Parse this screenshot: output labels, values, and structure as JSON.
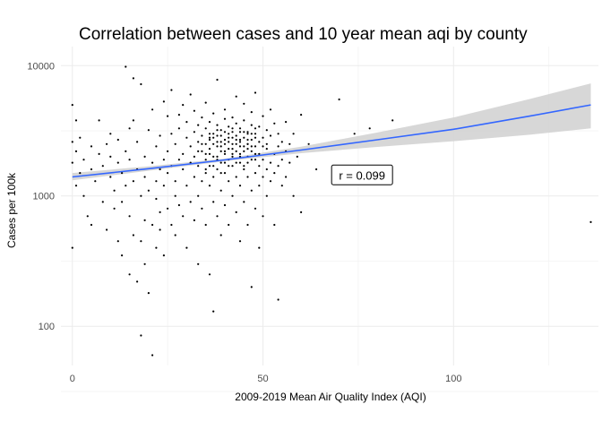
{
  "chart_data": {
    "type": "scatter",
    "title": "Correlation between cases and 10 year mean aqi by county",
    "xlabel": "2009-2019 Mean Air Quality Index (AQI)",
    "ylabel": "Cases per 100k",
    "x_ticks": [
      0,
      50,
      100
    ],
    "y_ticks": [
      100,
      1000,
      10000
    ],
    "y_scale": "log10",
    "xlim": [
      -3,
      138
    ],
    "ylim": [
      50,
      14000
    ],
    "grid": true,
    "legend": "none",
    "point_color": "#000000",
    "smooth_line_color": "#3366FF",
    "ribbon_color": "#d3d3d3",
    "smooth": {
      "method": "linear",
      "x": [
        0,
        20,
        40,
        60,
        80,
        100,
        120,
        136
      ],
      "y": [
        1400,
        1620,
        1890,
        2250,
        2700,
        3250,
        4100,
        5000
      ],
      "lower": [
        1320,
        1560,
        1845,
        2130,
        2380,
        2630,
        2950,
        3300
      ],
      "upper": [
        1500,
        1690,
        1935,
        2390,
        3070,
        4000,
        5550,
        7300
      ]
    },
    "annotation": {
      "text": "r = 0.099",
      "x": 76,
      "y": 1450
    },
    "points": [
      [
        0,
        5000
      ],
      [
        0,
        2600
      ],
      [
        0,
        1800
      ],
      [
        0,
        400
      ],
      [
        1,
        2200
      ],
      [
        1,
        3800
      ],
      [
        1,
        1200
      ],
      [
        2,
        1500
      ],
      [
        2,
        2800
      ],
      [
        3,
        1900
      ],
      [
        3,
        1000
      ],
      [
        4,
        700
      ],
      [
        5,
        2400
      ],
      [
        5,
        1600
      ],
      [
        5,
        600
      ],
      [
        6,
        1300
      ],
      [
        7,
        2100
      ],
      [
        7,
        3800
      ],
      [
        8,
        1700
      ],
      [
        8,
        900
      ],
      [
        9,
        2500
      ],
      [
        9,
        550
      ],
      [
        10,
        1400
      ],
      [
        10,
        3000
      ],
      [
        10,
        2000
      ],
      [
        11,
        800
      ],
      [
        11,
        1100
      ],
      [
        12,
        1800
      ],
      [
        12,
        450
      ],
      [
        12,
        2700
      ],
      [
        13,
        1500
      ],
      [
        13,
        350
      ],
      [
        13,
        900
      ],
      [
        14,
        9800
      ],
      [
        14,
        2200
      ],
      [
        14,
        1200
      ],
      [
        15,
        3300
      ],
      [
        15,
        700
      ],
      [
        15,
        250
      ],
      [
        15,
        1900
      ],
      [
        16,
        1300
      ],
      [
        16,
        8000
      ],
      [
        16,
        500
      ],
      [
        16,
        3800
      ],
      [
        17,
        1600
      ],
      [
        17,
        220
      ],
      [
        17,
        2600
      ],
      [
        18,
        1000
      ],
      [
        18,
        450
      ],
      [
        18,
        85
      ],
      [
        18,
        7200
      ],
      [
        19,
        2000
      ],
      [
        19,
        1400
      ],
      [
        19,
        650
      ],
      [
        19,
        300
      ],
      [
        20,
        3200
      ],
      [
        20,
        1100
      ],
      [
        20,
        180
      ],
      [
        21,
        1800
      ],
      [
        21,
        600
      ],
      [
        21,
        4600
      ],
      [
        21,
        60
      ],
      [
        22,
        1300
      ],
      [
        22,
        2400
      ],
      [
        22,
        400
      ],
      [
        22,
        950
      ],
      [
        23,
        750
      ],
      [
        23,
        2900
      ],
      [
        23,
        1600
      ],
      [
        23,
        550
      ],
      [
        24,
        1200
      ],
      [
        24,
        5300
      ],
      [
        24,
        1900
      ],
      [
        24,
        350
      ],
      [
        25,
        800
      ],
      [
        25,
        2200
      ],
      [
        25,
        4100
      ],
      [
        25,
        1500
      ],
      [
        26,
        600
      ],
      [
        26,
        1700
      ],
      [
        26,
        3000
      ],
      [
        26,
        6500
      ],
      [
        27,
        1000
      ],
      [
        27,
        2500
      ],
      [
        27,
        1300
      ],
      [
        27,
        500
      ],
      [
        28,
        1900
      ],
      [
        28,
        4200
      ],
      [
        28,
        850
      ],
      [
        28,
        3300
      ],
      [
        29,
        1600
      ],
      [
        29,
        700
      ],
      [
        29,
        5000
      ],
      [
        29,
        2100
      ],
      [
        30,
        1200
      ],
      [
        30,
        2800
      ],
      [
        30,
        400
      ],
      [
        30,
        3700
      ],
      [
        31,
        1800
      ],
      [
        31,
        900
      ],
      [
        31,
        2400
      ],
      [
        31,
        6000
      ],
      [
        32,
        1400
      ],
      [
        32,
        3100
      ],
      [
        32,
        650
      ],
      [
        32,
        2000
      ],
      [
        32,
        4500
      ],
      [
        33,
        1700
      ],
      [
        33,
        2600
      ],
      [
        33,
        1000
      ],
      [
        33,
        300
      ],
      [
        33,
        3500
      ],
      [
        34,
        2200
      ],
      [
        34,
        1300
      ],
      [
        34,
        4000
      ],
      [
        34,
        800
      ],
      [
        34,
        2900
      ],
      [
        35,
        1900
      ],
      [
        35,
        3300
      ],
      [
        35,
        1500
      ],
      [
        35,
        600
      ],
      [
        35,
        2500
      ],
      [
        35,
        5200
      ],
      [
        36,
        2100
      ],
      [
        36,
        1200
      ],
      [
        36,
        3700
      ],
      [
        36,
        250
      ],
      [
        36,
        2800
      ],
      [
        36,
        1700
      ],
      [
        37,
        3000
      ],
      [
        37,
        2000
      ],
      [
        37,
        900
      ],
      [
        37,
        4300
      ],
      [
        37,
        1400
      ],
      [
        37,
        130
      ],
      [
        38,
        2400
      ],
      [
        38,
        3500
      ],
      [
        38,
        1600
      ],
      [
        38,
        700
      ],
      [
        38,
        2900
      ],
      [
        38,
        7800
      ],
      [
        39,
        1800
      ],
      [
        39,
        2600
      ],
      [
        39,
        3200
      ],
      [
        39,
        1100
      ],
      [
        39,
        2200
      ],
      [
        39,
        500
      ],
      [
        40,
        3900
      ],
      [
        40,
        1500
      ],
      [
        40,
        2700
      ],
      [
        40,
        2100
      ],
      [
        40,
        850
      ],
      [
        40,
        4600
      ],
      [
        41,
        2300
      ],
      [
        41,
        3400
      ],
      [
        41,
        1900
      ],
      [
        41,
        1300
      ],
      [
        41,
        2800
      ],
      [
        41,
        600
      ],
      [
        42,
        3100
      ],
      [
        42,
        2000
      ],
      [
        42,
        1700
      ],
      [
        42,
        4000
      ],
      [
        42,
        2500
      ],
      [
        42,
        1000
      ],
      [
        43,
        2200
      ],
      [
        43,
        3600
      ],
      [
        43,
        1400
      ],
      [
        43,
        2900
      ],
      [
        43,
        5800
      ],
      [
        43,
        750
      ],
      [
        44,
        1800
      ],
      [
        44,
        2600
      ],
      [
        44,
        3300
      ],
      [
        44,
        1200
      ],
      [
        44,
        450
      ],
      [
        44,
        2100
      ],
      [
        45,
        2400
      ],
      [
        45,
        3800
      ],
      [
        45,
        1600
      ],
      [
        45,
        2800
      ],
      [
        45,
        900
      ],
      [
        45,
        5100
      ],
      [
        46,
        2000
      ],
      [
        46,
        3100
      ],
      [
        46,
        1400
      ],
      [
        46,
        2500
      ],
      [
        46,
        600
      ],
      [
        46,
        1800
      ],
      [
        47,
        3500
      ],
      [
        47,
        2200
      ],
      [
        47,
        1100
      ],
      [
        47,
        4400
      ],
      [
        47,
        2700
      ],
      [
        47,
        200
      ],
      [
        48,
        1900
      ],
      [
        48,
        3000
      ],
      [
        48,
        1500
      ],
      [
        48,
        2400
      ],
      [
        48,
        800
      ],
      [
        48,
        6200
      ],
      [
        49,
        2600
      ],
      [
        49,
        1700
      ],
      [
        49,
        3400
      ],
      [
        49,
        1200
      ],
      [
        49,
        2100
      ],
      [
        49,
        400
      ],
      [
        50,
        1900
      ],
      [
        50,
        2800
      ],
      [
        50,
        1400
      ],
      [
        50,
        4100
      ],
      [
        50,
        700
      ],
      [
        51,
        2300
      ],
      [
        51,
        1600
      ],
      [
        51,
        3200
      ],
      [
        51,
        1000
      ],
      [
        51,
        2500
      ],
      [
        52,
        1800
      ],
      [
        52,
        2900
      ],
      [
        52,
        1300
      ],
      [
        52,
        4600
      ],
      [
        53,
        2100
      ],
      [
        53,
        1500
      ],
      [
        53,
        3600
      ],
      [
        53,
        600
      ],
      [
        54,
        2400
      ],
      [
        54,
        1700
      ],
      [
        54,
        3000
      ],
      [
        54,
        160
      ],
      [
        55,
        1900
      ],
      [
        55,
        2600
      ],
      [
        55,
        1200
      ],
      [
        56,
        2200
      ],
      [
        56,
        3700
      ],
      [
        56,
        1400
      ],
      [
        57,
        1800
      ],
      [
        57,
        2500
      ],
      [
        58,
        1000
      ],
      [
        58,
        3000
      ],
      [
        59,
        2000
      ],
      [
        60,
        4200
      ],
      [
        60,
        750
      ],
      [
        62,
        2500
      ],
      [
        64,
        1600
      ],
      [
        70,
        5500
      ],
      [
        74,
        3000
      ],
      [
        78,
        3300
      ],
      [
        84,
        3800
      ],
      [
        136,
        630
      ],
      [
        35,
        2100
      ],
      [
        36,
        2300
      ],
      [
        37,
        2500
      ],
      [
        38,
        2000
      ],
      [
        39,
        2400
      ],
      [
        40,
        2200
      ],
      [
        41,
        2600
      ],
      [
        42,
        2300
      ],
      [
        43,
        2500
      ],
      [
        44,
        2400
      ],
      [
        45,
        2200
      ],
      [
        46,
        2700
      ],
      [
        47,
        2400
      ],
      [
        38,
        1900
      ],
      [
        40,
        1800
      ],
      [
        42,
        2100
      ],
      [
        44,
        2000
      ],
      [
        46,
        2300
      ],
      [
        48,
        2100
      ],
      [
        36,
        3000
      ],
      [
        38,
        3200
      ],
      [
        40,
        3100
      ],
      [
        42,
        3300
      ],
      [
        44,
        3100
      ],
      [
        46,
        3000
      ],
      [
        48,
        3300
      ],
      [
        37,
        2800
      ],
      [
        39,
        2900
      ],
      [
        41,
        3000
      ],
      [
        43,
        2700
      ],
      [
        45,
        3100
      ],
      [
        47,
        3000
      ],
      [
        35,
        1600
      ],
      [
        37,
        1700
      ],
      [
        39,
        1500
      ],
      [
        41,
        1700
      ],
      [
        43,
        1800
      ],
      [
        45,
        1700
      ],
      [
        47,
        1900
      ],
      [
        33,
        2200
      ],
      [
        34,
        2500
      ],
      [
        36,
        2700
      ],
      [
        38,
        2600
      ],
      [
        40,
        2500
      ],
      [
        42,
        2800
      ],
      [
        44,
        2700
      ],
      [
        46,
        2500
      ],
      [
        48,
        2800
      ],
      [
        50,
        2400
      ]
    ]
  }
}
